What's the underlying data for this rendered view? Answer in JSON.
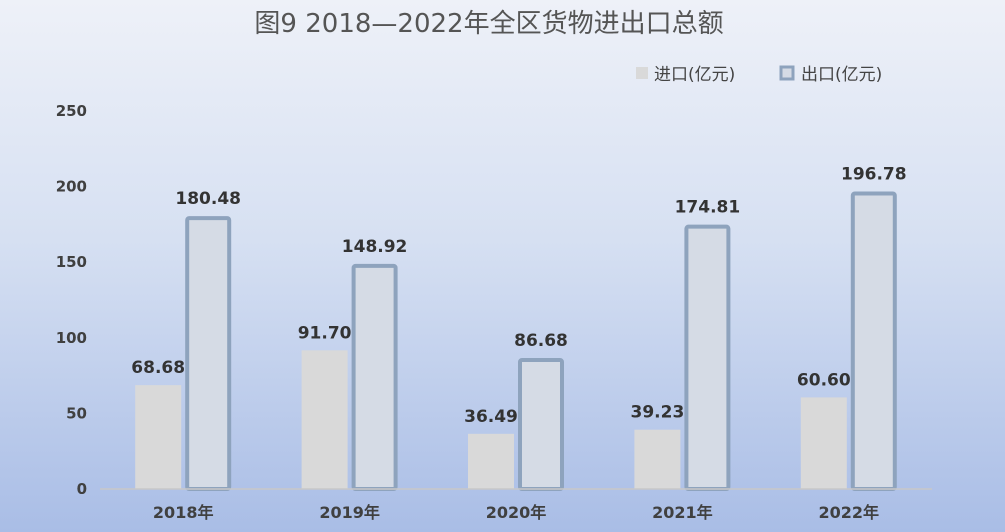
{
  "chart_data": {
    "type": "bar",
    "title": "图9  2018—2022年全区货物进出口总额",
    "categories": [
      "2018年",
      "2019年",
      "2020年",
      "2021年",
      "2022年"
    ],
    "series": [
      {
        "name": "进口(亿元)",
        "values": [
          68.68,
          91.7,
          36.49,
          39.23,
          60.6
        ],
        "labels": [
          "68.68",
          "91.70",
          "36.49",
          "39.23",
          "60.60"
        ],
        "color": "#d9d9d9"
      },
      {
        "name": "出口(亿元)",
        "values": [
          180.48,
          148.92,
          86.68,
          174.81,
          196.78
        ],
        "labels": [
          "180.48",
          "148.92",
          "86.68",
          "174.81",
          "196.78"
        ],
        "color": "#d5dbe5",
        "border_color": "#8ea3bd"
      }
    ],
    "y_ticks": [
      "0",
      "50",
      "100",
      "150",
      "200",
      "250"
    ],
    "ylim": [
      0,
      250
    ],
    "grid": false,
    "legend_position": "top-right"
  }
}
